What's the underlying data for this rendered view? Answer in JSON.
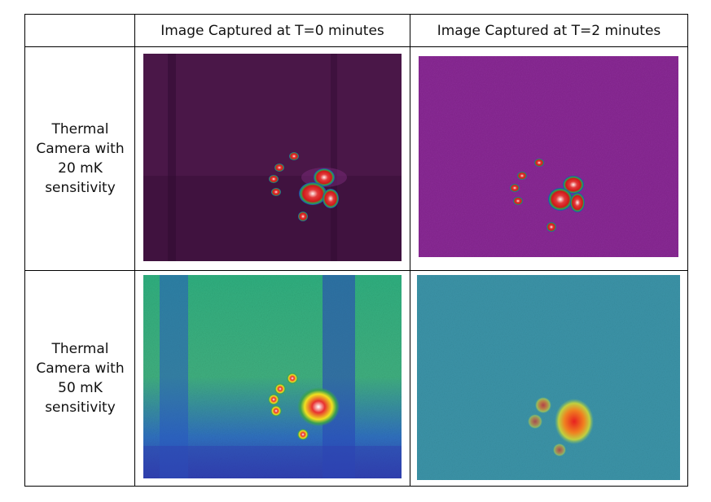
{
  "table": {
    "header": [
      "Image Captured at T=0 minutes",
      "Image Captured at T=2 minutes"
    ],
    "rows": [
      {
        "label_lines": [
          "Thermal",
          "Camera with",
          "20 mK",
          "sensitivity"
        ]
      },
      {
        "label_lines": [
          "Thermal",
          "Camera with",
          "50 mK",
          "sensitivity"
        ]
      }
    ]
  }
}
